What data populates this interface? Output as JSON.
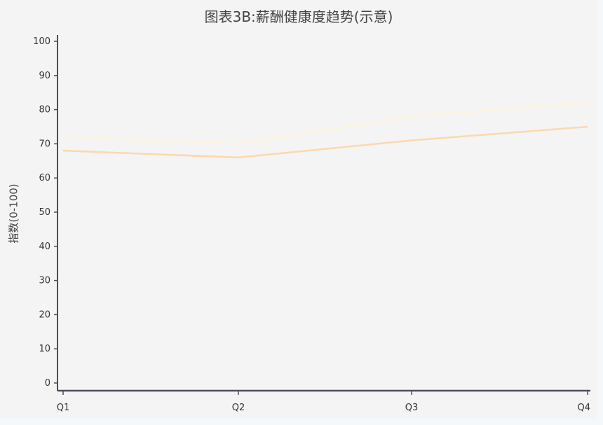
{
  "chart_data": {
    "type": "line",
    "title": "图表3B:薪酬健康度趋势(示意)",
    "xlabel": "",
    "ylabel": "指数(0-100)",
    "categories": [
      "Q1",
      "Q2",
      "Q3",
      "Q4"
    ],
    "ylim": [
      0,
      100
    ],
    "yticks": [
      0,
      10,
      20,
      30,
      40,
      50,
      60,
      70,
      80,
      90,
      100
    ],
    "grid": false,
    "series": [
      {
        "values": [
          72,
          70,
          78,
          82
        ],
        "color": "#fdf3dc"
      },
      {
        "values": [
          68,
          66,
          71,
          75
        ],
        "color": "#fdd8ae"
      }
    ]
  }
}
